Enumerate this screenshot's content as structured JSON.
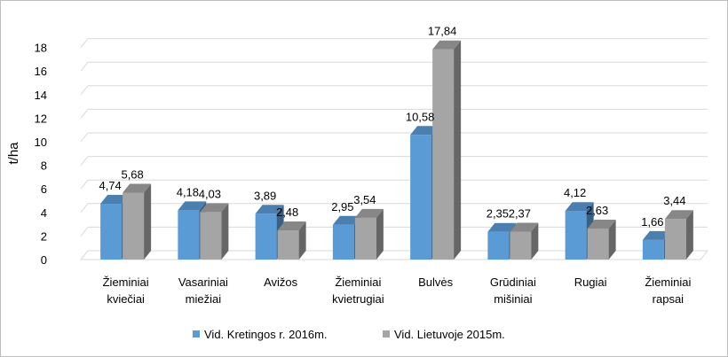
{
  "chart_data": {
    "type": "bar",
    "title": "",
    "xlabel": "",
    "ylabel": "t/ha",
    "ylim": [
      0,
      18
    ],
    "yticks": [
      0,
      2,
      4,
      6,
      8,
      10,
      12,
      14,
      16,
      18
    ],
    "grid": true,
    "legend_position": "bottom",
    "categories": [
      [
        "Žieminiai",
        "kviečiai"
      ],
      [
        "Vasariniai",
        "miežiai"
      ],
      [
        "Avižos"
      ],
      [
        "Žieminiai",
        "kvietrugiai"
      ],
      [
        "Bulvės"
      ],
      [
        "Grūdiniai",
        "mišiniai"
      ],
      [
        "Rugiai"
      ],
      [
        "Žieminiai",
        "rapsai"
      ]
    ],
    "series": [
      {
        "name": "Vid. Kretingos r. 2016m.",
        "color": "#5b9bd5",
        "values": [
          4.74,
          4.18,
          3.89,
          2.95,
          10.58,
          2.35,
          4.12,
          1.66
        ],
        "labels": [
          "4,74",
          "4,18",
          "3,89",
          "2,95",
          "10,58",
          "2,35",
          "4,12",
          "1,66"
        ]
      },
      {
        "name": "Vid. Lietuvoje 2015m.",
        "color": "#a5a5a5",
        "values": [
          5.68,
          4.03,
          2.48,
          3.54,
          17.84,
          2.37,
          2.63,
          3.44
        ],
        "labels": [
          "5,68",
          "4,03",
          "2,48",
          "3,54",
          "17,84",
          "2,37",
          "2,63",
          "3,44"
        ]
      }
    ]
  }
}
